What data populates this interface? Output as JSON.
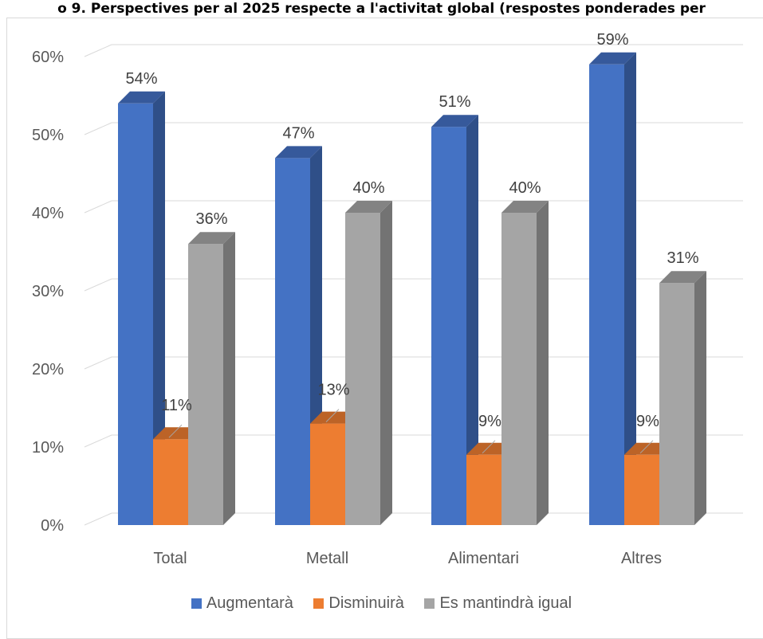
{
  "chart_data": {
    "type": "bar",
    "title": "o 9. Perspectives per al 2025 respecte a l'activitat global (respostes ponderades per",
    "categories": [
      "Total",
      "Metall",
      "Alimentari",
      "Altres"
    ],
    "series": [
      {
        "name": "Augmentarà",
        "values": [
          54,
          47,
          51,
          59
        ],
        "labels": [
          "54%",
          "47%",
          "51%",
          "59%"
        ]
      },
      {
        "name": "Disminuirà",
        "values": [
          11,
          13,
          9,
          9
        ],
        "labels": [
          "11%",
          "13%",
          "9%",
          "9%"
        ]
      },
      {
        "name": "Es mantindrà igual",
        "values": [
          36,
          40,
          40,
          31
        ],
        "labels": [
          "36%",
          "40%",
          "40%",
          "31%"
        ]
      }
    ],
    "ylim": [
      0,
      60
    ],
    "yticks": [
      0,
      10,
      20,
      30,
      40,
      50,
      60
    ],
    "ytick_labels": [
      "0%",
      "10%",
      "20%",
      "30%",
      "40%",
      "50%",
      "60%"
    ],
    "grid": true,
    "legend_position": "bottom",
    "style": "3d-column"
  },
  "colors": {
    "series": [
      "#4472c4",
      "#ed7d31",
      "#a5a5a5"
    ],
    "series_side": [
      "#2f4f88",
      "#a65724",
      "#737373"
    ],
    "series_top": [
      "#36599b",
      "#bc6327",
      "#838383"
    ],
    "grid": "#d9d9d9"
  }
}
